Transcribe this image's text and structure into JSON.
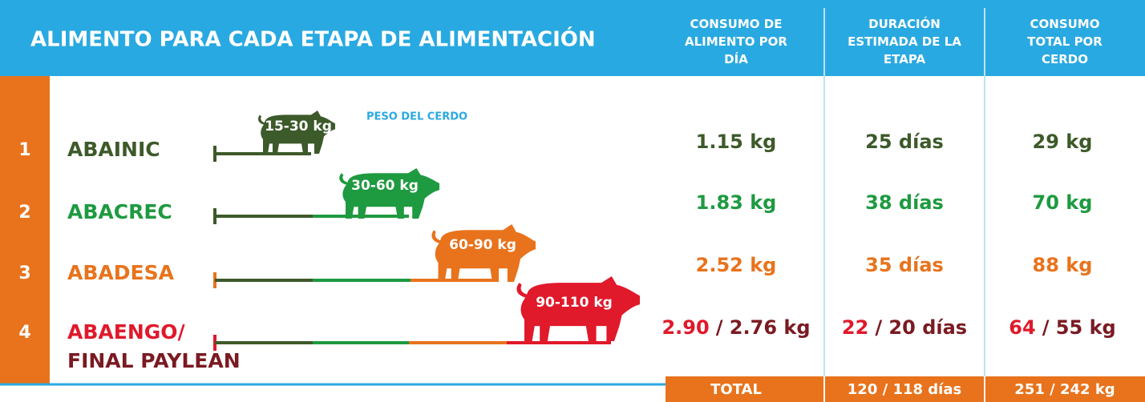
{
  "header": {
    "title": "ALIMENTO PARA CADA ETAPA DE ALIMENTACIÓN",
    "columns": [
      [
        "CONSUMO DE",
        "ALIMENTO POR",
        "DÍA"
      ],
      [
        "DURACIÓN",
        "ESTIMADA DE LA",
        "ETAPA"
      ],
      [
        "CONSUMO",
        "TOTAL POR",
        "CERDO"
      ]
    ]
  },
  "weight_label": "PESO DEL CERDO",
  "rows": [
    {
      "number": "1",
      "name": [
        "ABAINIC"
      ],
      "weight": "15-30 kg",
      "consumo": [
        "1.15 kg"
      ],
      "duracion": [
        "25 días"
      ],
      "total": [
        "29 kg"
      ]
    },
    {
      "number": "2",
      "name": [
        "ABACREC"
      ],
      "weight": "30-60 kg",
      "consumo": [
        "1.83 kg"
      ],
      "duracion": [
        "38 días"
      ],
      "total": [
        "70 kg"
      ]
    },
    {
      "number": "3",
      "name": [
        "ABADESA"
      ],
      "weight": "60-90 kg",
      "consumo": [
        "2.52 kg"
      ],
      "duracion": [
        "35 días"
      ],
      "total": [
        "88 kg"
      ]
    },
    {
      "number": "4",
      "name": [
        "ABAENGO/",
        "FINAL PAYLEAN"
      ],
      "weight": "90-110 kg",
      "consumo": [
        "2.90",
        "/ 2.76 kg"
      ],
      "duracion": [
        "22",
        "/ 20 días"
      ],
      "total": [
        "64",
        "/ 55 kg"
      ]
    }
  ],
  "footer": {
    "label": "TOTAL",
    "duracion": "120 / 118 días",
    "total": "251 / 242 kg"
  }
}
